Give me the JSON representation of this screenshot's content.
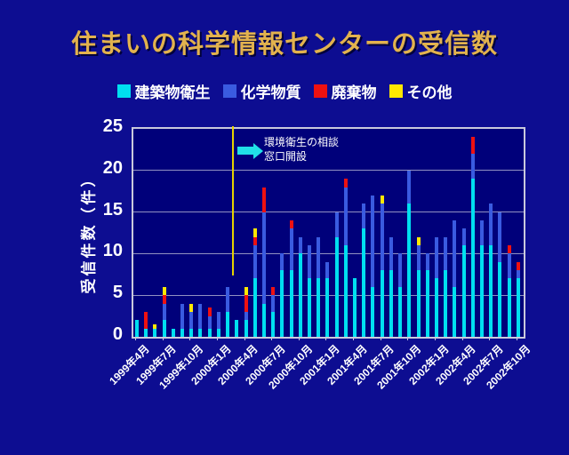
{
  "slide": {
    "title": "住まいの科学情報センターの受信数"
  },
  "legend": {
    "items": [
      {
        "label": "建築物衛生",
        "color": "#00dff0"
      },
      {
        "label": "化学物質",
        "color": "#3a5be0"
      },
      {
        "label": "廃棄物",
        "color": "#ee1111"
      },
      {
        "label": "その他",
        "color": "#ffe800"
      }
    ]
  },
  "annotation": {
    "line1": "環境衛生の相談",
    "line2": "窓口開設"
  },
  "chart_data": {
    "type": "bar",
    "stacked": true,
    "title": "住まいの科学情報センターの受信数",
    "xlabel": "",
    "ylabel": "受信件数（件）",
    "ylim": [
      0,
      25
    ],
    "yticks": [
      0,
      5,
      10,
      15,
      20,
      25
    ],
    "grid": "horizontal",
    "legend_position": "top",
    "months_total": 43,
    "x_start": "1999年4月",
    "x_labels": [
      "1999年4月",
      "1999年7月",
      "1999年10月",
      "2000年1月",
      "2000年4月",
      "2000年7月",
      "2000年10月",
      "2001年1月",
      "2001年4月",
      "2001年7月",
      "2001年10月",
      "2002年1月",
      "2002年4月",
      "2002年7月",
      "2002年10月"
    ],
    "label_every_n_bars": 3,
    "series": [
      {
        "name": "建築物衛生",
        "color": "#00dff0",
        "values": [
          2,
          1,
          1,
          2,
          1,
          1,
          1,
          1,
          1,
          1,
          3,
          2,
          2,
          7,
          4,
          3,
          8,
          8,
          10,
          7,
          7,
          7,
          12,
          11,
          7,
          13,
          6,
          8,
          8,
          6,
          16,
          8,
          8,
          7,
          8,
          6,
          11,
          19,
          11,
          11,
          9,
          7,
          7
        ]
      },
      {
        "name": "化学物質",
        "color": "#3a5be0",
        "values": [
          0,
          0,
          0,
          2,
          0,
          3,
          2,
          3,
          1.5,
          2,
          3,
          0,
          1,
          4,
          11,
          2,
          2,
          5,
          2,
          4,
          5,
          2,
          3,
          7,
          0,
          3,
          11,
          8,
          4,
          4,
          4,
          3,
          2,
          5,
          4,
          8,
          2,
          3,
          3,
          5,
          6,
          3,
          1
        ]
      },
      {
        "name": "廃棄物",
        "color": "#ee1111",
        "values": [
          0,
          2,
          0,
          1,
          0,
          0,
          0,
          0,
          1,
          0,
          0,
          0,
          2,
          1,
          3,
          1,
          0,
          1,
          0,
          0,
          0,
          0,
          0,
          1,
          0,
          0,
          0,
          0,
          0,
          0,
          0,
          0,
          0,
          0,
          0,
          0,
          0,
          2,
          0,
          0,
          0,
          1,
          1
        ]
      },
      {
        "name": "その他",
        "color": "#ffe800",
        "values": [
          0,
          0,
          0.5,
          1,
          0,
          0,
          1,
          0,
          0,
          0,
          0,
          0,
          1,
          1,
          0,
          0,
          0,
          0,
          0,
          0,
          0,
          0,
          0,
          0,
          0,
          0,
          0,
          1,
          0,
          0,
          0,
          1,
          0,
          0,
          0,
          0,
          0,
          0,
          0,
          0,
          0,
          0,
          0
        ]
      }
    ],
    "annotation": {
      "text_line1": "環境衛生の相談",
      "text_line2": "窓口開設",
      "event_line_x_label": "2000年4月"
    }
  }
}
